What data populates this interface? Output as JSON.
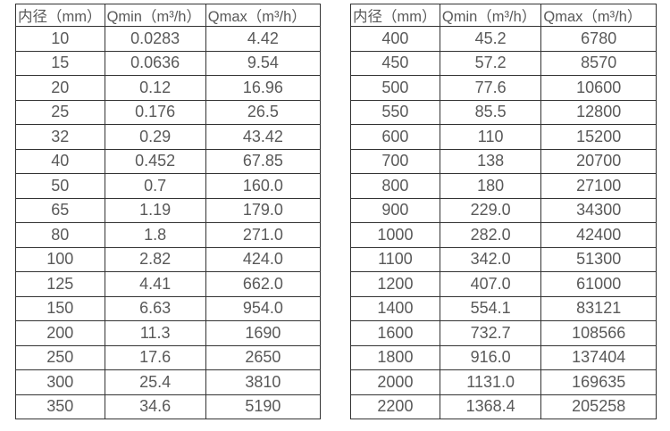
{
  "colors": {
    "background": "#ffffff",
    "border": "#333333",
    "text": "#595959"
  },
  "tables": [
    {
      "name": "flow-table-left",
      "headers": [
        "内径（mm）",
        "Qmin（m³/h）",
        "Qmax（m³/h）"
      ],
      "rows": [
        [
          "10",
          "0.0283",
          "4.42"
        ],
        [
          "15",
          "0.0636",
          "9.54"
        ],
        [
          "20",
          "0.12",
          "16.96"
        ],
        [
          "25",
          "0.176",
          "26.5"
        ],
        [
          "32",
          "0.29",
          "43.42"
        ],
        [
          "40",
          "0.452",
          "67.85"
        ],
        [
          "50",
          "0.7",
          "160.0"
        ],
        [
          "65",
          "1.19",
          "179.0"
        ],
        [
          "80",
          "1.8",
          "271.0"
        ],
        [
          "100",
          "2.82",
          "424.0"
        ],
        [
          "125",
          "4.41",
          "662.0"
        ],
        [
          "150",
          "6.63",
          "954.0"
        ],
        [
          "200",
          "11.3",
          "1690"
        ],
        [
          "250",
          "17.6",
          "2650"
        ],
        [
          "300",
          "25.4",
          "3810"
        ],
        [
          "350",
          "34.6",
          "5190"
        ]
      ]
    },
    {
      "name": "flow-table-right",
      "headers": [
        "内径（mm）",
        "Qmin（m³/h）",
        "Qmax（m³/h）"
      ],
      "rows": [
        [
          "400",
          "45.2",
          "6780"
        ],
        [
          "450",
          "57.2",
          "8570"
        ],
        [
          "500",
          "77.6",
          "10600"
        ],
        [
          "550",
          "85.5",
          "12800"
        ],
        [
          "600",
          "110",
          "15200"
        ],
        [
          "700",
          "138",
          "20700"
        ],
        [
          "800",
          "180",
          "27100"
        ],
        [
          "900",
          "229.0",
          "34300"
        ],
        [
          "1000",
          "282.0",
          "42400"
        ],
        [
          "1100",
          "342.0",
          "51300"
        ],
        [
          "1200",
          "407.0",
          "61000"
        ],
        [
          "1400",
          "554.1",
          "83121"
        ],
        [
          "1600",
          "732.7",
          "108566"
        ],
        [
          "1800",
          "916.0",
          "137404"
        ],
        [
          "2000",
          "1131.0",
          "169635"
        ],
        [
          "2200",
          "1368.4",
          "205258"
        ]
      ]
    }
  ]
}
